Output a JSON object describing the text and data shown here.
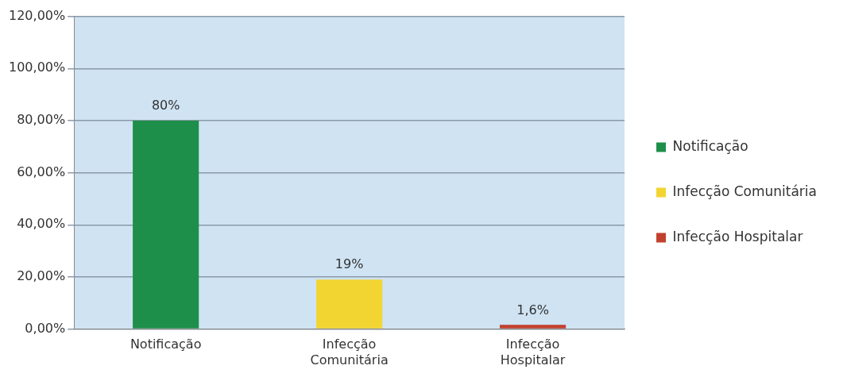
{
  "chart_data": {
    "type": "bar",
    "categories": [
      "Notificação",
      "Infecção Comunitária",
      "Infecção Hospitalar"
    ],
    "series": [
      {
        "name": "Notificação",
        "color": "#1e8f4a",
        "values": [
          80,
          null,
          null
        ],
        "value_labels": [
          "80%",
          null,
          null
        ]
      },
      {
        "name": "Infecção Comunitária",
        "color": "#f2d531",
        "values": [
          null,
          19,
          null
        ],
        "value_labels": [
          null,
          "19%",
          null
        ]
      },
      {
        "name": "Infecção Hospitalar",
        "color": "#c2412e",
        "values": [
          null,
          null,
          1.6
        ],
        "value_labels": [
          null,
          null,
          "1,6%"
        ]
      }
    ],
    "ylim": [
      0,
      120
    ],
    "yticks": [
      {
        "value": 0,
        "label": "0,00%"
      },
      {
        "value": 20,
        "label": "20,00%"
      },
      {
        "value": 40,
        "label": "40,00%"
      },
      {
        "value": 60,
        "label": "60,00%"
      },
      {
        "value": 80,
        "label": "80,00%"
      },
      {
        "value": 100,
        "label": "100,00%"
      },
      {
        "value": 120,
        "label": "120,00%"
      }
    ],
    "grid": "y",
    "legend": "right"
  }
}
